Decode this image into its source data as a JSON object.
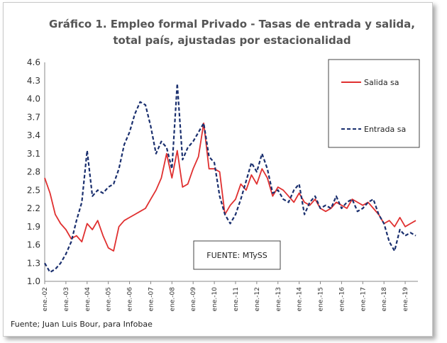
{
  "chart_data": {
    "type": "line",
    "title_lines": [
      "Gráfico 1. Empleo formal Privado - Tasas de entrada y salida,",
      "total país, ajustadas por estacionalidad"
    ],
    "ylim": [
      1.0,
      4.6
    ],
    "y_ticks": [
      "1.0",
      "1.3",
      "1.6",
      "1.9",
      "2.2",
      "2.5",
      "2.8",
      "3.1",
      "3.4",
      "3.7",
      "4.0",
      "4.3",
      "4.6"
    ],
    "x_tick_labels": [
      "ene.-02",
      "ene.-03",
      "ene.-04",
      "ene.-05",
      "ene.-06",
      "ene.-07",
      "ene.-08",
      "ene.-09",
      "ene.-10",
      "ene.-11",
      "ene.-12",
      "ene.-13",
      "ene.-14",
      "ene.-15",
      "ene.-16",
      "ene.-17",
      "ene.-18",
      "ene.-19"
    ],
    "legend_position": "top-right",
    "source_label": "FUENTE: MTySS",
    "series": [
      {
        "name": "Salida sa",
        "color": "#e03030",
        "style": "solid",
        "points": [
          [
            2002.0,
            2.7
          ],
          [
            2002.25,
            2.45
          ],
          [
            2002.5,
            2.1
          ],
          [
            2002.75,
            1.95
          ],
          [
            2003.0,
            1.85
          ],
          [
            2003.25,
            1.7
          ],
          [
            2003.5,
            1.75
          ],
          [
            2003.75,
            1.65
          ],
          [
            2004.0,
            1.95
          ],
          [
            2004.25,
            1.85
          ],
          [
            2004.5,
            2.0
          ],
          [
            2004.75,
            1.75
          ],
          [
            2005.0,
            1.55
          ],
          [
            2005.25,
            1.5
          ],
          [
            2005.5,
            1.9
          ],
          [
            2005.75,
            2.0
          ],
          [
            2006.0,
            2.05
          ],
          [
            2006.25,
            2.1
          ],
          [
            2006.5,
            2.15
          ],
          [
            2006.75,
            2.2
          ],
          [
            2007.0,
            2.35
          ],
          [
            2007.25,
            2.5
          ],
          [
            2007.5,
            2.7
          ],
          [
            2007.75,
            3.1
          ],
          [
            2008.0,
            2.7
          ],
          [
            2008.25,
            3.15
          ],
          [
            2008.5,
            2.55
          ],
          [
            2008.75,
            2.6
          ],
          [
            2009.0,
            2.85
          ],
          [
            2009.25,
            3.05
          ],
          [
            2009.5,
            3.6
          ],
          [
            2009.75,
            2.85
          ],
          [
            2010.0,
            2.85
          ],
          [
            2010.25,
            2.8
          ],
          [
            2010.5,
            2.1
          ],
          [
            2010.75,
            2.25
          ],
          [
            2011.0,
            2.35
          ],
          [
            2011.25,
            2.6
          ],
          [
            2011.5,
            2.5
          ],
          [
            2011.75,
            2.75
          ],
          [
            2012.0,
            2.6
          ],
          [
            2012.25,
            2.85
          ],
          [
            2012.5,
            2.7
          ],
          [
            2012.75,
            2.4
          ],
          [
            2013.0,
            2.55
          ],
          [
            2013.25,
            2.5
          ],
          [
            2013.5,
            2.4
          ],
          [
            2013.75,
            2.3
          ],
          [
            2014.0,
            2.45
          ],
          [
            2014.25,
            2.3
          ],
          [
            2014.5,
            2.25
          ],
          [
            2014.75,
            2.35
          ],
          [
            2015.0,
            2.2
          ],
          [
            2015.25,
            2.15
          ],
          [
            2015.5,
            2.2
          ],
          [
            2015.75,
            2.3
          ],
          [
            2016.0,
            2.25
          ],
          [
            2016.25,
            2.2
          ],
          [
            2016.5,
            2.35
          ],
          [
            2016.75,
            2.3
          ],
          [
            2017.0,
            2.25
          ],
          [
            2017.25,
            2.3
          ],
          [
            2017.5,
            2.2
          ],
          [
            2017.75,
            2.1
          ],
          [
            2018.0,
            1.95
          ],
          [
            2018.25,
            2.0
          ],
          [
            2018.5,
            1.9
          ],
          [
            2018.75,
            2.05
          ],
          [
            2019.0,
            1.9
          ],
          [
            2019.25,
            1.95
          ],
          [
            2019.5,
            2.0
          ]
        ]
      },
      {
        "name": "Entrada sa",
        "color": "#1a2f6e",
        "style": "dashed",
        "points": [
          [
            2002.0,
            1.3
          ],
          [
            2002.25,
            1.15
          ],
          [
            2002.5,
            1.2
          ],
          [
            2002.75,
            1.3
          ],
          [
            2003.0,
            1.45
          ],
          [
            2003.25,
            1.65
          ],
          [
            2003.5,
            2.0
          ],
          [
            2003.75,
            2.3
          ],
          [
            2004.0,
            3.15
          ],
          [
            2004.25,
            2.4
          ],
          [
            2004.5,
            2.5
          ],
          [
            2004.75,
            2.45
          ],
          [
            2005.0,
            2.55
          ],
          [
            2005.25,
            2.6
          ],
          [
            2005.5,
            2.85
          ],
          [
            2005.75,
            3.25
          ],
          [
            2006.0,
            3.45
          ],
          [
            2006.25,
            3.75
          ],
          [
            2006.5,
            3.95
          ],
          [
            2006.75,
            3.9
          ],
          [
            2007.0,
            3.55
          ],
          [
            2007.25,
            3.1
          ],
          [
            2007.5,
            3.3
          ],
          [
            2007.75,
            3.2
          ],
          [
            2008.0,
            2.85
          ],
          [
            2008.25,
            4.25
          ],
          [
            2008.5,
            3.0
          ],
          [
            2008.75,
            3.2
          ],
          [
            2009.0,
            3.3
          ],
          [
            2009.25,
            3.45
          ],
          [
            2009.5,
            3.6
          ],
          [
            2009.75,
            3.05
          ],
          [
            2010.0,
            2.95
          ],
          [
            2010.25,
            2.4
          ],
          [
            2010.5,
            2.1
          ],
          [
            2010.75,
            1.95
          ],
          [
            2011.0,
            2.1
          ],
          [
            2011.25,
            2.35
          ],
          [
            2011.5,
            2.65
          ],
          [
            2011.75,
            2.95
          ],
          [
            2012.0,
            2.8
          ],
          [
            2012.25,
            3.1
          ],
          [
            2012.5,
            2.85
          ],
          [
            2012.75,
            2.45
          ],
          [
            2013.0,
            2.5
          ],
          [
            2013.25,
            2.35
          ],
          [
            2013.5,
            2.3
          ],
          [
            2013.75,
            2.5
          ],
          [
            2014.0,
            2.6
          ],
          [
            2014.25,
            2.1
          ],
          [
            2014.5,
            2.3
          ],
          [
            2014.75,
            2.4
          ],
          [
            2015.0,
            2.2
          ],
          [
            2015.25,
            2.25
          ],
          [
            2015.5,
            2.2
          ],
          [
            2015.75,
            2.4
          ],
          [
            2016.0,
            2.2
          ],
          [
            2016.25,
            2.3
          ],
          [
            2016.5,
            2.35
          ],
          [
            2016.75,
            2.15
          ],
          [
            2017.0,
            2.2
          ],
          [
            2017.25,
            2.3
          ],
          [
            2017.5,
            2.35
          ],
          [
            2017.75,
            2.1
          ],
          [
            2018.0,
            1.95
          ],
          [
            2018.25,
            1.65
          ],
          [
            2018.5,
            1.5
          ],
          [
            2018.75,
            1.85
          ],
          [
            2019.0,
            1.75
          ],
          [
            2019.25,
            1.8
          ],
          [
            2019.5,
            1.75
          ]
        ]
      }
    ]
  },
  "caption": "Fuente; Juan Luis Bour, para Infobae"
}
